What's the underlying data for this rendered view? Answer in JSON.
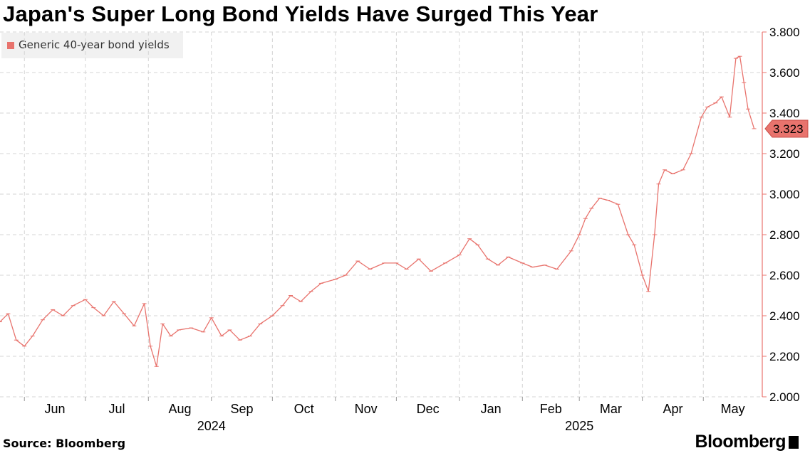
{
  "title": "Japan's Super Long Bond Yields Have Surged This Year",
  "source": "Source: Bloomberg",
  "brand": "Bloomberg",
  "colors": {
    "series": "#e8736d",
    "grid": "#d4d4d4",
    "axis": "#e8736d",
    "legend_bg": "#f1f1f1"
  },
  "chart_data": {
    "type": "line",
    "title": "Japan's Super Long Bond Yields Have Surged This Year",
    "xlabel": "",
    "ylabel": "",
    "legend": {
      "position": "top-left",
      "entries": [
        "Generic 40-year bond yields"
      ]
    },
    "grid": true,
    "y_axis_side": "right",
    "ylim": [
      2.0,
      3.8
    ],
    "yticks": [
      "2.000",
      "2.200",
      "2.400",
      "2.600",
      "2.800",
      "3.000",
      "3.200",
      "3.400",
      "3.600",
      "3.800"
    ],
    "xlim": [
      "2024-05-20",
      "2025-05-30"
    ],
    "month_ticks": [
      {
        "label": "Jun",
        "date": "2024-06-01"
      },
      {
        "label": "Jul",
        "date": "2024-07-01"
      },
      {
        "label": "Aug",
        "date": "2024-08-01"
      },
      {
        "label": "Sep",
        "date": "2024-09-01"
      },
      {
        "label": "Oct",
        "date": "2024-10-01"
      },
      {
        "label": "Nov",
        "date": "2024-11-01"
      },
      {
        "label": "Dec",
        "date": "2024-12-01"
      },
      {
        "label": "Jan",
        "date": "2025-01-01"
      },
      {
        "label": "Feb",
        "date": "2025-02-01"
      },
      {
        "label": "Mar",
        "date": "2025-03-01"
      },
      {
        "label": "Apr",
        "date": "2025-04-01"
      },
      {
        "label": "May",
        "date": "2025-05-01"
      }
    ],
    "year_labels": [
      {
        "label": "2024",
        "date": "2024-09-01"
      },
      {
        "label": "2025",
        "date": "2025-03-01"
      }
    ],
    "last_value_label": "3.323",
    "series": [
      {
        "name": "Generic 40-year bond yields",
        "x": [
          "2024-05-20",
          "2024-05-24",
          "2024-05-28",
          "2024-06-01",
          "2024-06-05",
          "2024-06-10",
          "2024-06-15",
          "2024-06-20",
          "2024-06-25",
          "2024-07-01",
          "2024-07-05",
          "2024-07-10",
          "2024-07-15",
          "2024-07-20",
          "2024-07-25",
          "2024-07-30",
          "2024-08-02",
          "2024-08-05",
          "2024-08-08",
          "2024-08-12",
          "2024-08-16",
          "2024-08-22",
          "2024-08-28",
          "2024-09-01",
          "2024-09-06",
          "2024-09-10",
          "2024-09-15",
          "2024-09-20",
          "2024-09-25",
          "2024-10-01",
          "2024-10-06",
          "2024-10-10",
          "2024-10-15",
          "2024-10-20",
          "2024-10-25",
          "2024-11-01",
          "2024-11-06",
          "2024-11-12",
          "2024-11-18",
          "2024-11-25",
          "2024-12-01",
          "2024-12-06",
          "2024-12-12",
          "2024-12-18",
          "2024-12-25",
          "2025-01-01",
          "2025-01-06",
          "2025-01-10",
          "2025-01-15",
          "2025-01-20",
          "2025-01-25",
          "2025-02-01",
          "2025-02-06",
          "2025-02-12",
          "2025-02-18",
          "2025-02-25",
          "2025-03-01",
          "2025-03-04",
          "2025-03-07",
          "2025-03-11",
          "2025-03-15",
          "2025-03-20",
          "2025-03-25",
          "2025-03-28",
          "2025-04-01",
          "2025-04-04",
          "2025-04-07",
          "2025-04-09",
          "2025-04-12",
          "2025-04-16",
          "2025-04-21",
          "2025-04-25",
          "2025-04-30",
          "2025-05-03",
          "2025-05-07",
          "2025-05-10",
          "2025-05-14",
          "2025-05-17",
          "2025-05-19",
          "2025-05-21",
          "2025-05-23",
          "2025-05-26"
        ],
        "y": [
          2.37,
          2.41,
          2.28,
          2.25,
          2.3,
          2.38,
          2.43,
          2.4,
          2.45,
          2.48,
          2.44,
          2.4,
          2.47,
          2.41,
          2.35,
          2.46,
          2.25,
          2.15,
          2.36,
          2.3,
          2.33,
          2.34,
          2.32,
          2.39,
          2.3,
          2.33,
          2.28,
          2.3,
          2.36,
          2.4,
          2.45,
          2.5,
          2.47,
          2.52,
          2.56,
          2.58,
          2.6,
          2.67,
          2.63,
          2.66,
          2.66,
          2.63,
          2.68,
          2.62,
          2.66,
          2.7,
          2.78,
          2.75,
          2.68,
          2.65,
          2.69,
          2.66,
          2.64,
          2.65,
          2.63,
          2.72,
          2.8,
          2.88,
          2.93,
          2.98,
          2.97,
          2.95,
          2.8,
          2.75,
          2.6,
          2.52,
          2.8,
          3.05,
          3.12,
          3.1,
          3.12,
          3.2,
          3.38,
          3.43,
          3.45,
          3.48,
          3.38,
          3.67,
          3.68,
          3.55,
          3.42,
          3.323
        ]
      }
    ]
  }
}
